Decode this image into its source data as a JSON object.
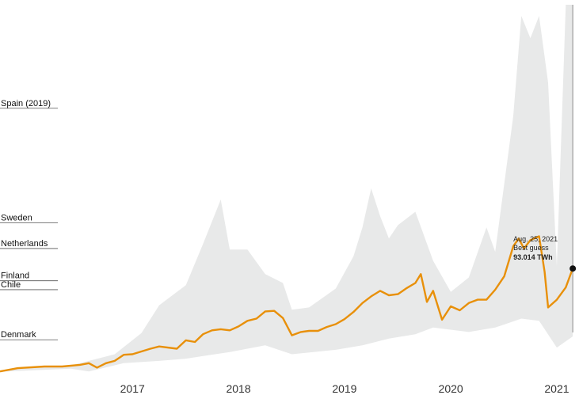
{
  "chart_data": {
    "type": "area",
    "title": "",
    "xlabel": "",
    "ylabel": "",
    "x_ticks": [
      "2017",
      "2018",
      "2019",
      "2020",
      "2021"
    ],
    "xlim": [
      "2016-04-01",
      "2021-09-10"
    ],
    "ylim_twh": [
      0,
      330
    ],
    "reference_lines": [
      {
        "label": "Spain (2019)",
        "value_twh": 237
      },
      {
        "label": "Sweden",
        "value_twh": 134
      },
      {
        "label": "Netherlands",
        "value_twh": 111
      },
      {
        "label": "Finland",
        "value_twh": 82
      },
      {
        "label": "Chile",
        "value_twh": 74
      },
      {
        "label": "Denmark",
        "value_twh": 29
      }
    ],
    "series": [
      {
        "role": "best_guess",
        "color": "#e8900a",
        "points": [
          [
            "2016-04-01",
            0.6
          ],
          [
            "2016-06-01",
            3.5
          ],
          [
            "2016-09-01",
            5.0
          ],
          [
            "2016-11-01",
            5.0
          ],
          [
            "2017-01-01",
            6.5
          ],
          [
            "2017-02-01",
            8.0
          ],
          [
            "2017-03-01",
            4.0
          ],
          [
            "2017-04-01",
            8.0
          ],
          [
            "2017-05-01",
            10.0
          ],
          [
            "2017-06-01",
            15.5
          ],
          [
            "2017-07-01",
            16.0
          ],
          [
            "2017-09-01",
            21.0
          ],
          [
            "2017-10-01",
            23.0
          ],
          [
            "2017-12-01",
            21.0
          ],
          [
            "2018-01-01",
            28.5
          ],
          [
            "2018-02-01",
            27.0
          ],
          [
            "2018-03-01",
            34.0
          ],
          [
            "2018-04-01",
            37.5
          ],
          [
            "2018-05-01",
            38.5
          ],
          [
            "2018-06-01",
            37.5
          ],
          [
            "2018-07-01",
            41.0
          ],
          [
            "2018-08-01",
            46.0
          ],
          [
            "2018-09-01",
            48.0
          ],
          [
            "2018-10-01",
            54.5
          ],
          [
            "2018-11-01",
            55.0
          ],
          [
            "2018-12-01",
            48.5
          ],
          [
            "2019-01-01",
            33.0
          ],
          [
            "2019-02-01",
            36.0
          ],
          [
            "2019-03-01",
            37.0
          ],
          [
            "2019-04-01",
            37.0
          ],
          [
            "2019-05-01",
            40.5
          ],
          [
            "2019-06-01",
            43.0
          ],
          [
            "2019-07-01",
            47.5
          ],
          [
            "2019-08-01",
            54.0
          ],
          [
            "2019-09-01",
            62.0
          ],
          [
            "2019-10-01",
            68.0
          ],
          [
            "2019-11-01",
            73.0
          ],
          [
            "2019-12-01",
            69.0
          ],
          [
            "2020-01-01",
            70.0
          ],
          [
            "2020-02-01",
            75.5
          ],
          [
            "2020-03-01",
            80.0
          ],
          [
            "2020-03-20",
            88.0
          ],
          [
            "2020-04-10",
            63.0
          ],
          [
            "2020-05-01",
            73.0
          ],
          [
            "2020-06-01",
            47.0
          ],
          [
            "2020-07-01",
            59.0
          ],
          [
            "2020-08-01",
            55.5
          ],
          [
            "2020-09-01",
            62.0
          ],
          [
            "2020-10-01",
            65.0
          ],
          [
            "2020-11-01",
            65.0
          ],
          [
            "2020-12-01",
            74.0
          ],
          [
            "2021-01-01",
            86.0
          ],
          [
            "2021-02-01",
            113.0
          ],
          [
            "2021-02-20",
            120.0
          ],
          [
            "2021-03-10",
            111.0
          ],
          [
            "2021-04-01",
            118.5
          ],
          [
            "2021-05-01",
            122.0
          ],
          [
            "2021-05-20",
            90.0
          ],
          [
            "2021-06-01",
            58.0
          ],
          [
            "2021-07-01",
            65.0
          ],
          [
            "2021-08-01",
            76.0
          ],
          [
            "2021-08-25",
            93.014
          ]
        ]
      },
      {
        "role": "upper_bound",
        "color": "#e8e9e9",
        "points": [
          [
            "2016-04-01",
            1.0
          ],
          [
            "2016-07-01",
            4.0
          ],
          [
            "2016-12-01",
            6.0
          ],
          [
            "2017-02-01",
            10.0
          ],
          [
            "2017-05-01",
            16.0
          ],
          [
            "2017-08-01",
            35.0
          ],
          [
            "2017-10-01",
            60.0
          ],
          [
            "2018-01-01",
            78.0
          ],
          [
            "2018-03-01",
            115.0
          ],
          [
            "2018-05-01",
            155.0
          ],
          [
            "2018-06-01",
            110.0
          ],
          [
            "2018-08-01",
            110.0
          ],
          [
            "2018-10-01",
            88.0
          ],
          [
            "2018-12-01",
            80.0
          ],
          [
            "2019-01-01",
            56.0
          ],
          [
            "2019-03-01",
            58.0
          ],
          [
            "2019-06-01",
            75.0
          ],
          [
            "2019-08-01",
            104.0
          ],
          [
            "2019-09-01",
            130.0
          ],
          [
            "2019-10-01",
            165.0
          ],
          [
            "2019-11-01",
            140.0
          ],
          [
            "2019-12-01",
            120.0
          ],
          [
            "2020-01-01",
            132.0
          ],
          [
            "2020-03-01",
            144.0
          ],
          [
            "2020-05-01",
            100.0
          ],
          [
            "2020-07-01",
            72.0
          ],
          [
            "2020-09-01",
            85.0
          ],
          [
            "2020-11-01",
            130.0
          ],
          [
            "2020-12-01",
            108.0
          ],
          [
            "2021-02-01",
            230.0
          ],
          [
            "2021-03-01",
            320.0
          ],
          [
            "2021-04-01",
            300.0
          ],
          [
            "2021-05-01",
            320.0
          ],
          [
            "2021-06-01",
            260.0
          ],
          [
            "2021-07-01",
            95.0
          ],
          [
            "2021-08-01",
            330.0
          ],
          [
            "2021-08-25",
            330.0
          ]
        ]
      },
      {
        "role": "lower_bound",
        "color": "#e8e9e9",
        "points": [
          [
            "2016-04-01",
            0.3
          ],
          [
            "2016-12-01",
            3.0
          ],
          [
            "2017-02-01",
            0.5
          ],
          [
            "2017-06-01",
            8.0
          ],
          [
            "2017-10-01",
            10.0
          ],
          [
            "2018-01-01",
            12.0
          ],
          [
            "2018-06-01",
            18.0
          ],
          [
            "2018-10-01",
            24.0
          ],
          [
            "2019-01-01",
            16.0
          ],
          [
            "2019-06-01",
            20.0
          ],
          [
            "2019-09-01",
            24.0
          ],
          [
            "2019-12-01",
            30.0
          ],
          [
            "2020-03-01",
            34.0
          ],
          [
            "2020-05-01",
            40.0
          ],
          [
            "2020-09-01",
            36.0
          ],
          [
            "2020-12-01",
            40.0
          ],
          [
            "2021-03-01",
            48.0
          ],
          [
            "2021-05-01",
            46.0
          ],
          [
            "2021-07-01",
            22.0
          ],
          [
            "2021-08-25",
            32.0
          ]
        ]
      }
    ],
    "annotation": {
      "date_text": "Aug. 25, 2021",
      "label": "Best guess",
      "value_text": "93.014 TWh",
      "x": "2021-08-25",
      "y": 93.014
    }
  }
}
